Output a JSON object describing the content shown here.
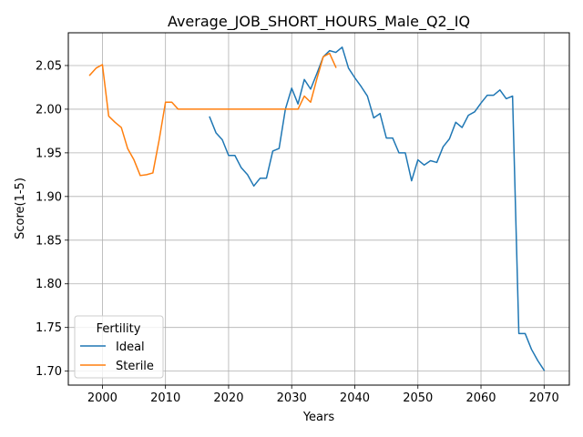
{
  "chart_data": {
    "type": "line",
    "title": "Average_JOB_SHORT_HOURS_Male_Q2_IQ",
    "xlabel": "Years",
    "ylabel": "Score(1-5)",
    "xlim": [
      1994.6,
      2074
    ],
    "ylim": [
      1.684,
      2.0875
    ],
    "xticks": [
      2000,
      2010,
      2020,
      2030,
      2040,
      2050,
      2060,
      2070
    ],
    "yticks": [
      1.7,
      1.75,
      1.8,
      1.85,
      1.9,
      1.95,
      2.0,
      2.05
    ],
    "xtick_labels": [
      "2000",
      "2010",
      "2020",
      "2030",
      "2040",
      "2050",
      "2060",
      "2070"
    ],
    "ytick_labels": [
      "1.70",
      "1.75",
      "1.80",
      "1.85",
      "1.90",
      "1.95",
      "2.00",
      "2.05"
    ],
    "grid": true,
    "legend": {
      "title": "Fertility",
      "position": "lower-left"
    },
    "series": [
      {
        "name": "Ideal",
        "color": "#1f77b4",
        "x": [
          2017,
          2018,
          2019,
          2020,
          2021,
          2022,
          2023,
          2024,
          2025,
          2026,
          2027,
          2028,
          2029,
          2030,
          2031,
          2032,
          2033,
          2034,
          2035,
          2036,
          2037,
          2038,
          2039,
          2040,
          2041,
          2042,
          2043,
          2044,
          2045,
          2046,
          2047,
          2048,
          2049,
          2050,
          2051,
          2052,
          2053,
          2054,
          2055,
          2056,
          2057,
          2058,
          2059,
          2060,
          2061,
          2062,
          2063,
          2064,
          2065,
          2066,
          2067,
          2068,
          2069,
          2070
        ],
        "y": [
          1.991,
          1.973,
          1.965,
          1.947,
          1.947,
          1.933,
          1.925,
          1.912,
          1.921,
          1.921,
          1.952,
          1.955,
          2.0,
          2.024,
          2.006,
          2.034,
          2.023,
          2.041,
          2.06,
          2.067,
          2.065,
          2.071,
          2.047,
          2.036,
          2.026,
          2.015,
          1.99,
          1.995,
          1.967,
          1.967,
          1.95,
          1.95,
          1.918,
          1.942,
          1.936,
          1.941,
          1.939,
          1.957,
          1.966,
          1.985,
          1.979,
          1.993,
          1.997,
          2.007,
          2.016,
          2.016,
          2.022,
          2.012,
          2.015,
          1.743,
          1.743,
          1.725,
          1.712,
          1.701
        ]
      },
      {
        "name": "Sterile",
        "color": "#ff7f0e",
        "x": [
          1998,
          1999,
          2000,
          2001,
          2002,
          2003,
          2004,
          2005,
          2006,
          2007,
          2008,
          2009,
          2010,
          2011,
          2012,
          2013,
          2014,
          2015,
          2016,
          2017,
          2018,
          2019,
          2020,
          2021,
          2022,
          2023,
          2024,
          2025,
          2026,
          2027,
          2028,
          2029,
          2030,
          2031,
          2032,
          2033,
          2034,
          2035,
          2036,
          2037
        ],
        "y": [
          2.039,
          2.047,
          2.051,
          1.992,
          1.985,
          1.979,
          1.955,
          1.942,
          1.924,
          1.925,
          1.927,
          1.965,
          2.008,
          2.008,
          2.0,
          2.0,
          2.0,
          2.0,
          2.0,
          2.0,
          2.0,
          2.0,
          2.0,
          2.0,
          2.0,
          2.0,
          2.0,
          2.0,
          2.0,
          2.0,
          2.0,
          2.0,
          2.0,
          2.0,
          2.015,
          2.008,
          2.035,
          2.06,
          2.064,
          2.048
        ]
      }
    ]
  }
}
